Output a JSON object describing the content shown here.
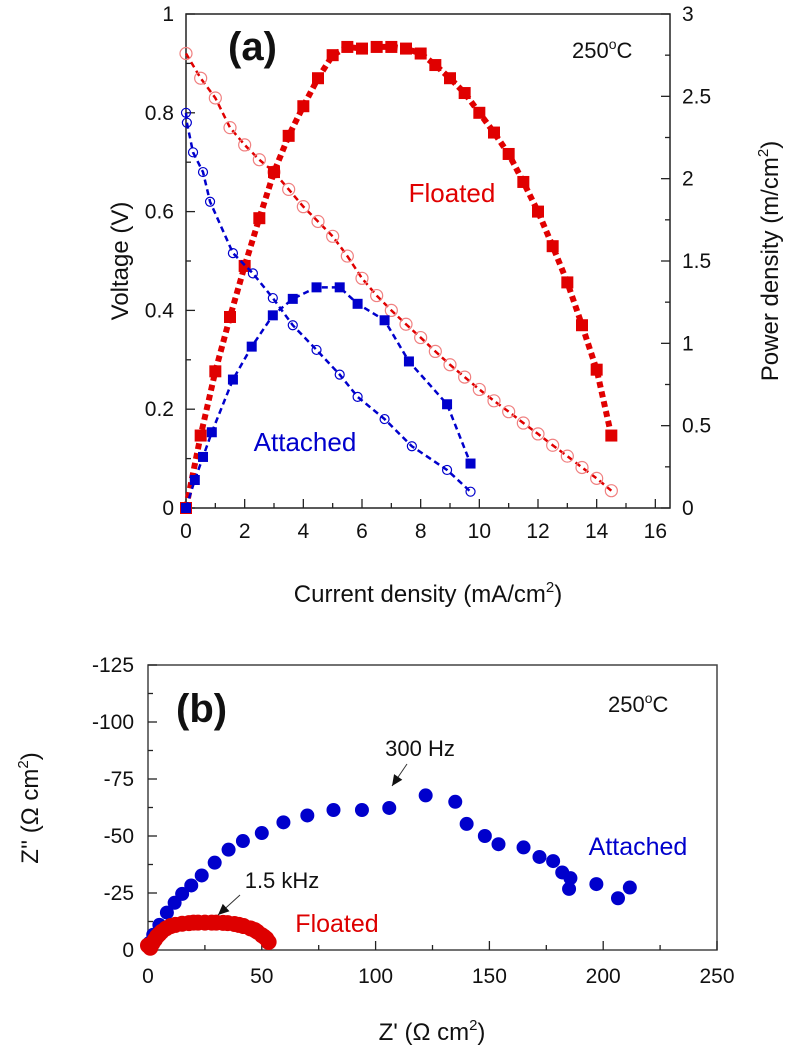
{
  "chart_data": [
    {
      "type": "line",
      "panel_label": "(a)",
      "annotation": "250",
      "annotation_unit": "oC",
      "xlabel": "Current density (mA/cm",
      "xlabel_sup": "2",
      "xlabel_end": ")",
      "ylabel": "Voltage (V)",
      "y2label": "Power density (m/cm",
      "y2label_sup": "2",
      "y2label_end": ")",
      "xlim": [
        0,
        16.5
      ],
      "ylim": [
        0,
        1
      ],
      "y2lim": [
        0,
        3
      ],
      "xticks": [
        "0",
        "2",
        "4",
        "6",
        "8",
        "10",
        "12",
        "14",
        "16"
      ],
      "yticks": [
        "0",
        "0.2",
        "0.4",
        "0.6",
        "0.8",
        "1"
      ],
      "y2ticks": [
        "0",
        "0.5",
        "1",
        "1.5",
        "2",
        "2.5",
        "3"
      ],
      "grid": false,
      "colors": {
        "floated": "#e00000",
        "floated_open": "#f08080",
        "attached": "#0000cc"
      },
      "series": [
        {
          "name": "Floated",
          "axis": "left",
          "marker": "open-circle",
          "x": [
            0,
            0.5,
            1,
            1.5,
            2,
            2.5,
            3,
            3.5,
            4,
            4.5,
            5,
            5.5,
            6,
            6.5,
            7,
            7.5,
            8,
            8.5,
            9,
            9.5,
            10,
            10.5,
            11,
            11.5,
            12,
            12.5,
            13,
            13.5,
            14,
            14.5
          ],
          "y": [
            0.92,
            0.87,
            0.83,
            0.77,
            0.735,
            0.705,
            0.68,
            0.645,
            0.61,
            0.58,
            0.55,
            0.51,
            0.465,
            0.43,
            0.4,
            0.372,
            0.345,
            0.317,
            0.29,
            0.265,
            0.24,
            0.217,
            0.195,
            0.172,
            0.15,
            0.127,
            0.105,
            0.082,
            0.06,
            0.035
          ]
        },
        {
          "name": "Floated",
          "axis": "right",
          "marker": "filled-square",
          "x": [
            0,
            0.5,
            1,
            1.5,
            2,
            2.5,
            3,
            3.5,
            4,
            4.5,
            5,
            5.5,
            6,
            6.5,
            7,
            7.5,
            8,
            8.5,
            9,
            9.5,
            10,
            10.5,
            11,
            11.5,
            12,
            12.5,
            13,
            13.5,
            14,
            14.5
          ],
          "y": [
            0,
            0.44,
            0.83,
            1.16,
            1.47,
            1.76,
            2.04,
            2.26,
            2.44,
            2.61,
            2.75,
            2.8,
            2.79,
            2.8,
            2.8,
            2.79,
            2.76,
            2.69,
            2.61,
            2.52,
            2.4,
            2.28,
            2.15,
            1.98,
            1.8,
            1.59,
            1.37,
            1.11,
            0.84,
            0.44
          ]
        },
        {
          "name": "Attached",
          "axis": "left",
          "marker": "open-circle",
          "x": [
            0,
            0.03,
            0.24,
            0.58,
            0.82,
            1.6,
            2.28,
            2.96,
            3.64,
            4.45,
            5.24,
            5.85,
            6.77,
            7.7,
            8.9,
            9.7
          ],
          "y": [
            0.8,
            0.78,
            0.72,
            0.68,
            0.62,
            0.516,
            0.475,
            0.425,
            0.37,
            0.32,
            0.27,
            0.225,
            0.18,
            0.125,
            0.077,
            0.033
          ]
        },
        {
          "name": "Attached",
          "axis": "right",
          "marker": "filled-square",
          "x": [
            0,
            0.3,
            0.58,
            0.88,
            1.6,
            2.24,
            2.96,
            3.64,
            4.45,
            5.24,
            5.85,
            6.77,
            7.6,
            8.9,
            9.7
          ],
          "y": [
            0,
            0.17,
            0.31,
            0.46,
            0.78,
            0.98,
            1.17,
            1.27,
            1.34,
            1.34,
            1.24,
            1.14,
            0.89,
            0.63,
            0.27
          ]
        }
      ],
      "labels": {
        "floated": "Floated",
        "attached": "Attached"
      }
    },
    {
      "type": "scatter",
      "panel_label": "(b)",
      "annotation": "250",
      "annotation_unit": "oC",
      "xlabel": "Z' (Ω cm",
      "xlabel_sup": "2",
      "xlabel_end": ")",
      "ylabel": "Z'' (Ω cm",
      "ylabel_sup": "2",
      "ylabel_end": ")",
      "xlim": [
        0,
        250
      ],
      "ylim": [
        0,
        -125
      ],
      "xticks": [
        "0",
        "50",
        "100",
        "150",
        "200",
        "250"
      ],
      "yticks": [
        "0",
        "-25",
        "-50",
        "-75",
        "-100",
        "-125"
      ],
      "grid": false,
      "colors": {
        "floated": "#dd0000",
        "attached": "#0000cc"
      },
      "series": [
        {
          "name": "Attached",
          "x": [
            0.5,
            2.3,
            5,
            8.3,
            11.7,
            15,
            19,
            23.6,
            29.3,
            35.4,
            41.7,
            50,
            59.5,
            70,
            81.5,
            94,
            106,
            122,
            135,
            140,
            148,
            154,
            165,
            172,
            178,
            182,
            185.6,
            185,
            197,
            206.5,
            211.7
          ],
          "y": [
            -3,
            -6.7,
            -11,
            -16.4,
            -20.7,
            -24.6,
            -28.3,
            -32.7,
            -38.3,
            -44,
            -47.8,
            -51.3,
            -56,
            -59,
            -61.4,
            -61.4,
            -62.3,
            -67.8,
            -65,
            -55.3,
            -50,
            -46.4,
            -45,
            -40.8,
            -39,
            -34,
            -31.5,
            -26.8,
            -28.9,
            -22.7,
            -27.4
          ]
        },
        {
          "name": "Floated",
          "x": [
            0,
            1,
            2,
            3,
            4,
            5,
            6,
            8,
            10,
            12,
            15,
            18,
            20,
            22,
            25,
            28,
            30,
            33,
            35,
            38,
            40,
            42,
            45,
            47,
            48,
            50,
            51,
            52,
            53
          ],
          "y": [
            -2,
            -1,
            -3,
            -4.5,
            -6,
            -7,
            -8,
            -9.5,
            -10.5,
            -11,
            -11.5,
            -11.8,
            -12,
            -12,
            -12,
            -12,
            -12,
            -11.9,
            -11.8,
            -11.4,
            -11,
            -10.5,
            -9.5,
            -8.7,
            -8,
            -6.5,
            -5.8,
            -5,
            -3.5
          ]
        }
      ],
      "annotations": [
        {
          "text": "300 Hz",
          "x": 106,
          "y": -62.3
        },
        {
          "text": "1.5 kHz",
          "x": 30,
          "y": -12
        }
      ],
      "labels": {
        "floated": "Floated",
        "attached": "Attached"
      }
    }
  ]
}
